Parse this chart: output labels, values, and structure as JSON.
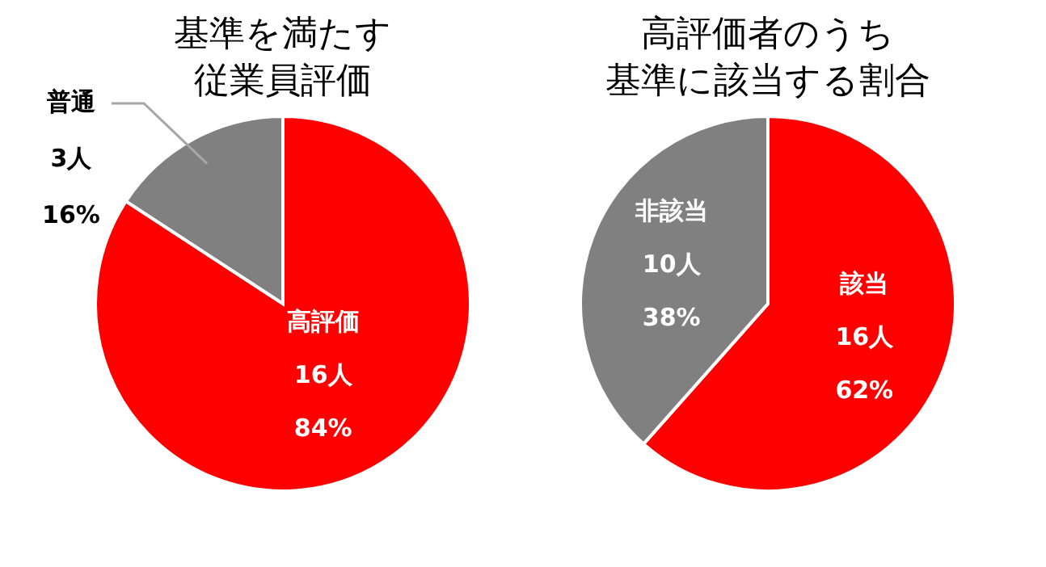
{
  "chart_data": [
    {
      "type": "pie",
      "title": "基準を満たす従業員評価",
      "categories": [
        "高評価",
        "普通"
      ],
      "values": [
        16,
        3
      ],
      "colors": [
        "#ff0000",
        "#808080"
      ],
      "value_labels": [
        "16人\n84%",
        "3人\n16%"
      ]
    },
    {
      "type": "pie",
      "title": "高評価者のうち基準に該当する割合",
      "categories": [
        "該当",
        "非該当"
      ],
      "values": [
        16,
        10
      ],
      "colors": [
        "#ff0000",
        "#808080"
      ],
      "value_labels": [
        "16人\n62%",
        "10人\n38%"
      ]
    }
  ]
}
